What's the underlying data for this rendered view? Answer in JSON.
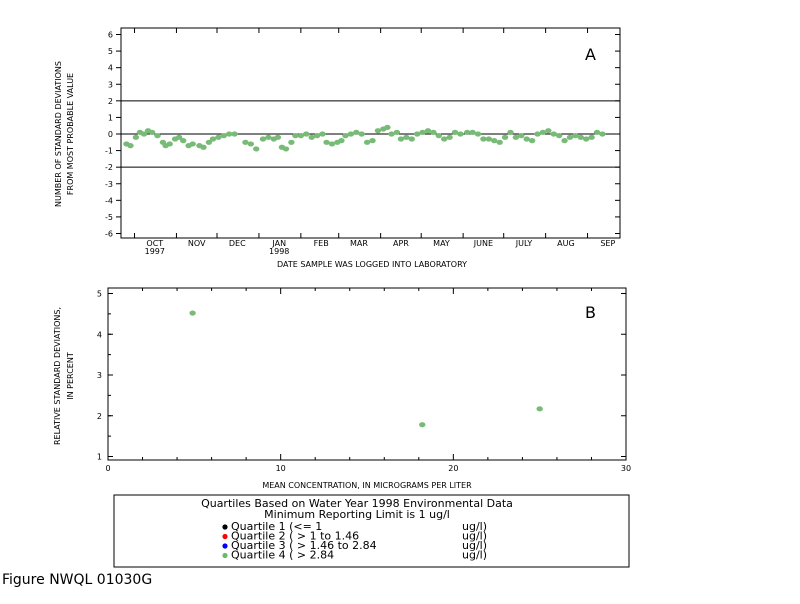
{
  "figure_caption": "Figure NWQL 01030G",
  "legend": {
    "title_line1": "Quartiles Based on Water Year 1998 Environmental Data",
    "title_line2": "Minimum Reporting Limit is 1 ug/l",
    "items": [
      {
        "label": "Quartile 1 (<= 1",
        "unit": "ug/l)",
        "color": "#000000"
      },
      {
        "label": "Quartile 2 ( > 1 to 1.46",
        "unit": "ug/l)",
        "color": "#ff0000"
      },
      {
        "label": "Quartile 3 ( > 1.46 to 2.84",
        "unit": "ug/l)",
        "color": "#0000ff"
      },
      {
        "label": "Quartile 4 ( > 2.84",
        "unit": "ug/l)",
        "color": "#66bb66"
      }
    ]
  },
  "chart_data": [
    {
      "type": "scatter",
      "panel_label": "A",
      "ylabel_line1": "NUMBER OF STANDARD DEVIATIONS",
      "ylabel_line2": "FROM MOST PROBABLE VALUE",
      "xlabel": "DATE SAMPLE WAS LOGGED INTO LABORATORY",
      "ylim": [
        -6,
        6
      ],
      "yticks": [
        6,
        5,
        4,
        3,
        2,
        1,
        0,
        -1,
        -2,
        -3,
        -4,
        -5,
        -6
      ],
      "reference_lines": [
        2,
        0,
        -2
      ],
      "month_ticks": [
        {
          "label": "OCT",
          "sub": "1997"
        },
        {
          "label": "NOV",
          "sub": ""
        },
        {
          "label": "DEC",
          "sub": ""
        },
        {
          "label": "JAN",
          "sub": "1998"
        },
        {
          "label": "FEB",
          "sub": ""
        },
        {
          "label": "MAR",
          "sub": ""
        },
        {
          "label": "APR",
          "sub": ""
        },
        {
          "label": "MAY",
          "sub": ""
        },
        {
          "label": "JUNE",
          "sub": ""
        },
        {
          "label": "JULY",
          "sub": ""
        },
        {
          "label": "AUG",
          "sub": ""
        },
        {
          "label": "SEP",
          "sub": ""
        }
      ],
      "series_color": "#77bb77",
      "points": [
        {
          "date": "1997-09-25",
          "y": -0.6
        },
        {
          "date": "1997-09-28",
          "y": -0.7
        },
        {
          "date": "1997-10-02",
          "y": -0.2
        },
        {
          "date": "1997-10-05",
          "y": 0.1
        },
        {
          "date": "1997-10-08",
          "y": 0.0
        },
        {
          "date": "1997-10-11",
          "y": 0.2
        },
        {
          "date": "1997-10-14",
          "y": 0.1
        },
        {
          "date": "1997-10-18",
          "y": -0.1
        },
        {
          "date": "1997-10-22",
          "y": -0.5
        },
        {
          "date": "1997-10-24",
          "y": -0.7
        },
        {
          "date": "1997-10-27",
          "y": -0.6
        },
        {
          "date": "1997-10-31",
          "y": -0.3
        },
        {
          "date": "1997-11-03",
          "y": -0.2
        },
        {
          "date": "1997-11-06",
          "y": -0.4
        },
        {
          "date": "1997-11-10",
          "y": -0.7
        },
        {
          "date": "1997-11-13",
          "y": -0.6
        },
        {
          "date": "1997-11-18",
          "y": -0.7
        },
        {
          "date": "1997-11-21",
          "y": -0.8
        },
        {
          "date": "1997-11-25",
          "y": -0.5
        },
        {
          "date": "1997-11-28",
          "y": -0.3
        },
        {
          "date": "1997-12-02",
          "y": -0.2
        },
        {
          "date": "1997-12-06",
          "y": -0.1
        },
        {
          "date": "1997-12-10",
          "y": 0.0
        },
        {
          "date": "1997-12-14",
          "y": 0.0
        },
        {
          "date": "1997-12-22",
          "y": -0.5
        },
        {
          "date": "1997-12-26",
          "y": -0.6
        },
        {
          "date": "1997-12-30",
          "y": -0.9
        },
        {
          "date": "1998-01-04",
          "y": -0.3
        },
        {
          "date": "1998-01-08",
          "y": -0.2
        },
        {
          "date": "1998-01-12",
          "y": -0.3
        },
        {
          "date": "1998-01-15",
          "y": -0.2
        },
        {
          "date": "1998-01-18",
          "y": -0.8
        },
        {
          "date": "1998-01-21",
          "y": -0.9
        },
        {
          "date": "1998-01-25",
          "y": -0.5
        },
        {
          "date": "1998-01-28",
          "y": -0.1
        },
        {
          "date": "1998-02-01",
          "y": -0.1
        },
        {
          "date": "1998-02-05",
          "y": 0.0
        },
        {
          "date": "1998-02-09",
          "y": -0.2
        },
        {
          "date": "1998-02-13",
          "y": -0.1
        },
        {
          "date": "1998-02-17",
          "y": 0.0
        },
        {
          "date": "1998-02-20",
          "y": -0.5
        },
        {
          "date": "1998-02-24",
          "y": -0.6
        },
        {
          "date": "1998-02-28",
          "y": -0.5
        },
        {
          "date": "1998-03-03",
          "y": -0.4
        },
        {
          "date": "1998-03-06",
          "y": -0.1
        },
        {
          "date": "1998-03-10",
          "y": 0.0
        },
        {
          "date": "1998-03-14",
          "y": 0.1
        },
        {
          "date": "1998-03-18",
          "y": 0.0
        },
        {
          "date": "1998-03-22",
          "y": -0.5
        },
        {
          "date": "1998-03-26",
          "y": -0.4
        },
        {
          "date": "1998-03-30",
          "y": 0.2
        },
        {
          "date": "1998-04-03",
          "y": 0.3
        },
        {
          "date": "1998-04-06",
          "y": 0.4
        },
        {
          "date": "1998-04-09",
          "y": 0.0
        },
        {
          "date": "1998-04-13",
          "y": 0.1
        },
        {
          "date": "1998-04-16",
          "y": -0.3
        },
        {
          "date": "1998-04-20",
          "y": -0.2
        },
        {
          "date": "1998-04-24",
          "y": -0.3
        },
        {
          "date": "1998-04-28",
          "y": 0.0
        },
        {
          "date": "1998-05-02",
          "y": 0.1
        },
        {
          "date": "1998-05-06",
          "y": 0.2
        },
        {
          "date": "1998-05-10",
          "y": 0.1
        },
        {
          "date": "1998-05-14",
          "y": -0.1
        },
        {
          "date": "1998-05-18",
          "y": -0.3
        },
        {
          "date": "1998-05-22",
          "y": -0.2
        },
        {
          "date": "1998-05-26",
          "y": 0.1
        },
        {
          "date": "1998-05-30",
          "y": 0.0
        },
        {
          "date": "1998-06-04",
          "y": 0.1
        },
        {
          "date": "1998-06-08",
          "y": 0.1
        },
        {
          "date": "1998-06-12",
          "y": 0.0
        },
        {
          "date": "1998-06-16",
          "y": -0.3
        },
        {
          "date": "1998-06-20",
          "y": -0.3
        },
        {
          "date": "1998-06-24",
          "y": -0.4
        },
        {
          "date": "1998-06-28",
          "y": -0.5
        },
        {
          "date": "1998-07-02",
          "y": -0.2
        },
        {
          "date": "1998-07-06",
          "y": 0.1
        },
        {
          "date": "1998-07-10",
          "y": -0.2
        },
        {
          "date": "1998-07-14",
          "y": -0.1
        },
        {
          "date": "1998-07-18",
          "y": -0.3
        },
        {
          "date": "1998-07-22",
          "y": -0.4
        },
        {
          "date": "1998-07-26",
          "y": 0.0
        },
        {
          "date": "1998-07-30",
          "y": 0.1
        },
        {
          "date": "1998-08-03",
          "y": 0.2
        },
        {
          "date": "1998-08-07",
          "y": 0.0
        },
        {
          "date": "1998-08-11",
          "y": -0.1
        },
        {
          "date": "1998-08-15",
          "y": -0.4
        },
        {
          "date": "1998-08-19",
          "y": -0.2
        },
        {
          "date": "1998-08-23",
          "y": -0.1
        },
        {
          "date": "1998-08-27",
          "y": -0.2
        },
        {
          "date": "1998-08-31",
          "y": -0.3
        },
        {
          "date": "1998-09-04",
          "y": -0.2
        },
        {
          "date": "1998-09-08",
          "y": 0.1
        },
        {
          "date": "1998-09-12",
          "y": 0.0
        }
      ]
    },
    {
      "type": "scatter",
      "panel_label": "B",
      "ylabel_line1": "RELATIVE STANDARD DEVIATIONS,",
      "ylabel_line2": "IN PERCENT",
      "xlabel": "MEAN CONCENTRATION, IN MICROGRAMS PER LITER",
      "xlim": [
        0,
        30
      ],
      "ylim": [
        1,
        5
      ],
      "xticks": [
        0,
        10,
        20,
        30
      ],
      "yticks": [
        5,
        4,
        3,
        2,
        1
      ],
      "series_color": "#77bb77",
      "points": [
        {
          "x": 4.9,
          "y": 4.52
        },
        {
          "x": 18.2,
          "y": 1.78
        },
        {
          "x": 25.0,
          "y": 2.17
        }
      ]
    }
  ]
}
